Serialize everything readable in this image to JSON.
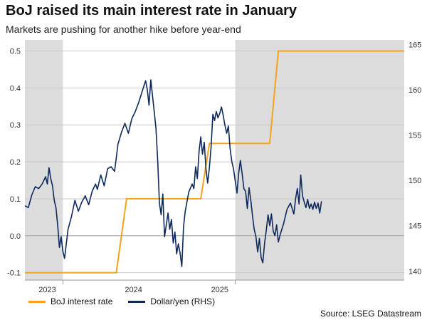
{
  "chart_data": {
    "type": "line",
    "title": "BoJ raised its main interest rate in January",
    "subtitle": "Markets are pushing for another hike before year-end",
    "source": "Source: LSEG Datastream",
    "x_domain": [
      2023.65,
      2025.85
    ],
    "left_axis": {
      "ylim": [
        -0.12,
        0.53
      ],
      "ticks": [
        -0.1,
        0.0,
        0.1,
        0.2,
        0.3,
        0.4,
        0.5
      ],
      "labels": [
        "-0.1",
        "0.0",
        "0.1",
        "0.2",
        "0.3",
        "0.4",
        "0.5"
      ]
    },
    "right_axis": {
      "ylim": [
        139.0,
        165.5
      ],
      "ticks": [
        140,
        145,
        150,
        155,
        160,
        165
      ],
      "labels": [
        "140",
        "145",
        "150",
        "155",
        "160",
        "165"
      ]
    },
    "x_labels": [
      {
        "x": 2023.78,
        "label": "2023"
      },
      {
        "x": 2024.28,
        "label": "2024"
      },
      {
        "x": 2024.78,
        "label": "2025"
      }
    ],
    "x_year_ticks": [
      2023.87,
      2024.87
    ],
    "shaded_periods": [
      [
        2023.65,
        2023.87
      ],
      [
        2024.87,
        2025.85
      ]
    ],
    "series": [
      {
        "name": "BoJ interest rate",
        "axis": "left",
        "color": "#f5a31a",
        "points": [
          [
            2023.65,
            -0.1
          ],
          [
            2024.18,
            -0.1
          ],
          [
            2024.24,
            0.1
          ],
          [
            2024.67,
            0.1
          ],
          [
            2024.72,
            0.25
          ],
          [
            2025.07,
            0.25
          ],
          [
            2025.12,
            0.5
          ],
          [
            2025.85,
            0.5
          ]
        ]
      },
      {
        "name": "Dollar/yen (RHS)",
        "axis": "right",
        "color": "#0e2a5c",
        "points": [
          [
            2023.65,
            147.2
          ],
          [
            2023.67,
            147.0
          ],
          [
            2023.69,
            148.4
          ],
          [
            2023.71,
            149.3
          ],
          [
            2023.73,
            149.1
          ],
          [
            2023.75,
            149.6
          ],
          [
            2023.77,
            150.4
          ],
          [
            2023.78,
            149.6
          ],
          [
            2023.79,
            151.4
          ],
          [
            2023.8,
            150.2
          ],
          [
            2023.81,
            149.4
          ],
          [
            2023.82,
            147.8
          ],
          [
            2023.83,
            147.0
          ],
          [
            2023.84,
            145.1
          ],
          [
            2023.85,
            142.6
          ],
          [
            2023.86,
            143.8
          ],
          [
            2023.87,
            142.2
          ],
          [
            2023.88,
            141.4
          ],
          [
            2023.9,
            144.6
          ],
          [
            2023.92,
            146.0
          ],
          [
            2023.94,
            147.8
          ],
          [
            2023.96,
            146.6
          ],
          [
            2023.98,
            147.6
          ],
          [
            2024.0,
            148.3
          ],
          [
            2024.02,
            147.3
          ],
          [
            2024.04,
            148.8
          ],
          [
            2024.06,
            149.6
          ],
          [
            2024.07,
            149.0
          ],
          [
            2024.09,
            150.6
          ],
          [
            2024.11,
            149.4
          ],
          [
            2024.13,
            151.3
          ],
          [
            2024.15,
            151.5
          ],
          [
            2024.17,
            151.0
          ],
          [
            2024.19,
            154.0
          ],
          [
            2024.21,
            155.3
          ],
          [
            2024.23,
            156.3
          ],
          [
            2024.25,
            155.2
          ],
          [
            2024.27,
            156.8
          ],
          [
            2024.29,
            157.6
          ],
          [
            2024.31,
            158.6
          ],
          [
            2024.33,
            159.8
          ],
          [
            2024.35,
            161.0
          ],
          [
            2024.36,
            160.0
          ],
          [
            2024.37,
            158.3
          ],
          [
            2024.38,
            161.1
          ],
          [
            2024.4,
            157.6
          ],
          [
            2024.41,
            155.8
          ],
          [
            2024.42,
            152.2
          ],
          [
            2024.43,
            147.5
          ],
          [
            2024.44,
            146.2
          ],
          [
            2024.45,
            148.5
          ],
          [
            2024.46,
            143.8
          ],
          [
            2024.47,
            145.1
          ],
          [
            2024.48,
            146.4
          ],
          [
            2024.49,
            144.6
          ],
          [
            2024.5,
            145.7
          ],
          [
            2024.51,
            143.1
          ],
          [
            2024.52,
            144.3
          ],
          [
            2024.53,
            141.9
          ],
          [
            2024.54,
            143.0
          ],
          [
            2024.55,
            142.0
          ],
          [
            2024.56,
            140.5
          ],
          [
            2024.57,
            144.9
          ],
          [
            2024.58,
            146.6
          ],
          [
            2024.6,
            148.7
          ],
          [
            2024.62,
            149.6
          ],
          [
            2024.63,
            149.1
          ],
          [
            2024.64,
            151.5
          ],
          [
            2024.65,
            150.2
          ],
          [
            2024.66,
            153.2
          ],
          [
            2024.67,
            154.8
          ],
          [
            2024.68,
            152.9
          ],
          [
            2024.69,
            154.2
          ],
          [
            2024.7,
            151.3
          ],
          [
            2024.71,
            149.7
          ],
          [
            2024.72,
            151.4
          ],
          [
            2024.73,
            153.8
          ],
          [
            2024.74,
            157.3
          ],
          [
            2024.75,
            156.6
          ],
          [
            2024.76,
            157.6
          ],
          [
            2024.77,
            156.9
          ],
          [
            2024.78,
            157.4
          ],
          [
            2024.79,
            158.1
          ],
          [
            2024.8,
            157.2
          ],
          [
            2024.81,
            156.1
          ],
          [
            2024.82,
            155.2
          ],
          [
            2024.83,
            156.0
          ],
          [
            2024.84,
            153.5
          ],
          [
            2024.85,
            152.1
          ],
          [
            2024.86,
            151.3
          ],
          [
            2024.87,
            149.9
          ],
          [
            2024.88,
            148.6
          ],
          [
            2024.89,
            150.8
          ],
          [
            2024.9,
            152.2
          ],
          [
            2024.91,
            150.7
          ],
          [
            2024.92,
            149.1
          ],
          [
            2024.93,
            148.8
          ],
          [
            2024.94,
            146.9
          ],
          [
            2024.95,
            149.2
          ],
          [
            2024.96,
            147.8
          ],
          [
            2024.97,
            146.1
          ],
          [
            2024.98,
            144.6
          ],
          [
            2024.99,
            143.8
          ],
          [
            2025.0,
            142.1
          ],
          [
            2025.01,
            143.6
          ],
          [
            2025.02,
            141.5
          ],
          [
            2025.03,
            140.9
          ],
          [
            2025.04,
            143.1
          ],
          [
            2025.05,
            144.5
          ],
          [
            2025.06,
            146.2
          ],
          [
            2025.07,
            145.0
          ],
          [
            2025.08,
            146.3
          ],
          [
            2025.09,
            144.4
          ],
          [
            2025.1,
            143.9
          ],
          [
            2025.11,
            145.1
          ],
          [
            2025.12,
            143.2
          ],
          [
            2025.13,
            144.0
          ],
          [
            2025.15,
            145.2
          ],
          [
            2025.17,
            146.8
          ],
          [
            2025.19,
            147.5
          ],
          [
            2025.21,
            146.3
          ],
          [
            2025.22,
            148.0
          ],
          [
            2025.23,
            149.1
          ],
          [
            2025.24,
            147.4
          ],
          [
            2025.25,
            150.6
          ],
          [
            2025.26,
            148.3
          ],
          [
            2025.27,
            147.6
          ],
          [
            2025.28,
            147.0
          ],
          [
            2025.29,
            147.9
          ],
          [
            2025.3,
            146.9
          ],
          [
            2025.31,
            147.4
          ],
          [
            2025.32,
            146.8
          ],
          [
            2025.33,
            147.6
          ],
          [
            2025.34,
            146.9
          ],
          [
            2025.35,
            147.5
          ],
          [
            2025.36,
            146.4
          ],
          [
            2025.37,
            147.7
          ]
        ]
      }
    ],
    "legend": [
      "BoJ interest rate",
      "Dollar/yen (RHS)"
    ]
  }
}
